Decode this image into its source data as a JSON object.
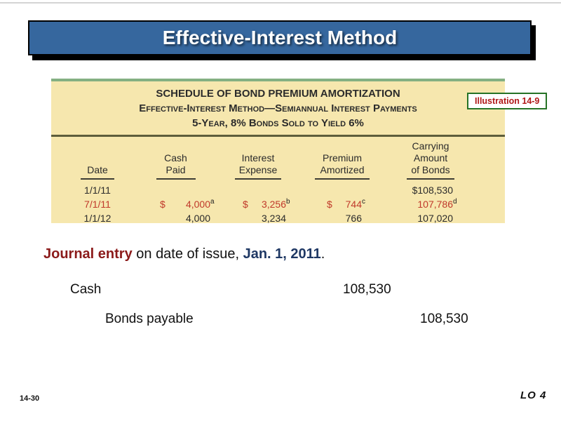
{
  "slide": {
    "title": "Effective-Interest Method",
    "page_number": "14-30",
    "lo_label": "LO 4"
  },
  "illustration_label": "Illustration 14-9",
  "schedule_table": {
    "title_lines": {
      "line1": "SCHEDULE OF BOND PREMIUM AMORTIZATION",
      "line2": "Effective-Interest Method—Semiannual Interest Payments",
      "line3": "5-Year, 8% Bonds Sold to Yield 6%"
    },
    "columns": [
      {
        "line1": "",
        "line2": "",
        "line3": "Date"
      },
      {
        "line1": "",
        "line2": "Cash",
        "line3": "Paid"
      },
      {
        "line1": "",
        "line2": "Interest",
        "line3": "Expense"
      },
      {
        "line1": "",
        "line2": "Premium",
        "line3": "Amortized"
      },
      {
        "line1": "Carrying",
        "line2": "Amount",
        "line3": "of Bonds"
      }
    ],
    "rows": [
      {
        "date": "1/1/11",
        "cash_prefix": "",
        "cash": "",
        "cash_sup": "",
        "interest_prefix": "",
        "interest": "",
        "interest_sup": "",
        "premium_prefix": "",
        "premium": "",
        "premium_sup": "",
        "carrying": "$108,530",
        "carrying_sup": ""
      },
      {
        "date": "7/1/11",
        "cash_prefix": "$",
        "cash": "4,000",
        "cash_sup": "a",
        "interest_prefix": "$",
        "interest": "3,256",
        "interest_sup": "b",
        "premium_prefix": "$",
        "premium": "744",
        "premium_sup": "c",
        "carrying": "107,786",
        "carrying_sup": "d"
      },
      {
        "date": "1/1/12",
        "cash_prefix": "",
        "cash": "4,000",
        "cash_sup": "",
        "interest_prefix": "",
        "interest": "3,234",
        "interest_sup": "",
        "premium_prefix": "",
        "premium": "766",
        "premium_sup": "",
        "carrying": "107,020",
        "carrying_sup": ""
      }
    ]
  },
  "journal_caption": {
    "lead": "Journal entry",
    "middle": " on date of issue, ",
    "date": "Jan. 1, 2011",
    "period": "."
  },
  "journal_entry": {
    "debit_account": "Cash",
    "debit_amount": "108,530",
    "credit_account": "Bonds payable",
    "credit_amount": "108,530"
  },
  "colors": {
    "banner_blue": "#36679E",
    "table_background": "#F6E7AE",
    "table_top_border_green": "#84B082",
    "divider_olive": "#5D5D3B",
    "highlight_red": "#C0392B",
    "journal_lead_red": "#8B1A1A",
    "journal_date_blue": "#1F3864",
    "illustration_border_green": "#267326",
    "illustration_text_red": "#B01818"
  }
}
